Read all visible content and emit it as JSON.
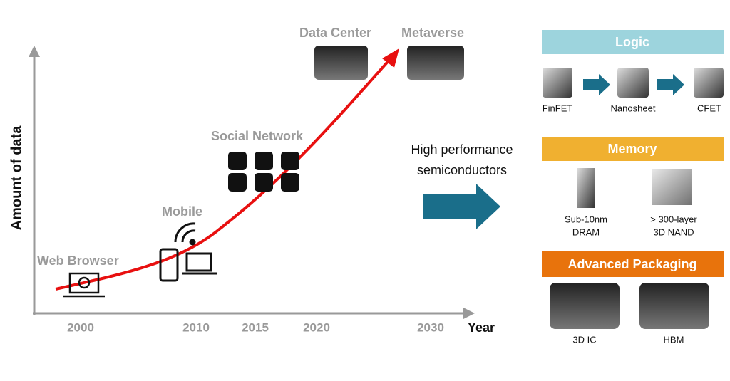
{
  "chart": {
    "y_label": "Amount of data",
    "x_label": "Year",
    "x_ticks": [
      "2000",
      "2010",
      "2015",
      "2020",
      "2030"
    ],
    "milestones": [
      "Web Browser",
      "Mobile",
      "Social Network",
      "Data Center",
      "Metaverse"
    ]
  },
  "arrow_text": [
    "High performance",
    "semiconductors"
  ],
  "panels": [
    {
      "title": "Logic",
      "items": [
        [
          "FinFET"
        ],
        [
          "Nanosheet"
        ],
        [
          "CFET"
        ]
      ]
    },
    {
      "title": "Memory",
      "items": [
        [
          "Sub-10nm",
          "DRAM"
        ],
        [
          "> 300-layer",
          "3D NAND"
        ]
      ]
    },
    {
      "title": "Advanced Packaging",
      "items": [
        [
          "3D IC"
        ],
        [
          "HBM"
        ]
      ]
    }
  ]
}
